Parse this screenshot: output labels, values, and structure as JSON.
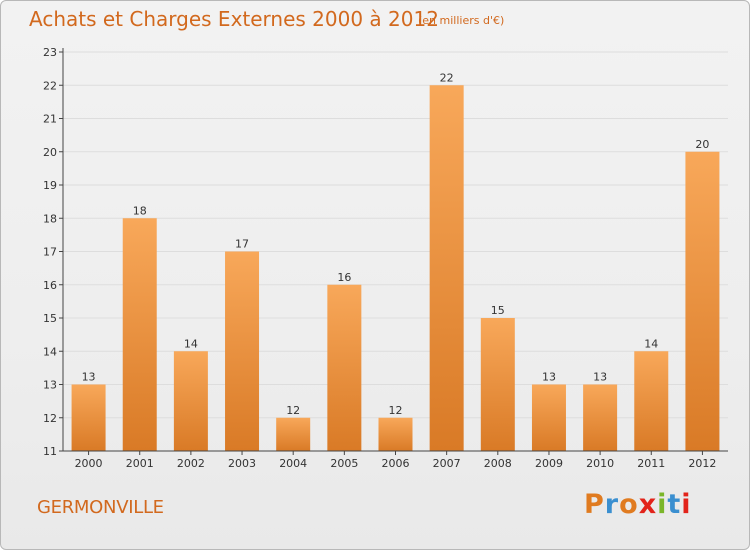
{
  "header": {
    "title": "Achats et Charges Externes 2000 à 2012",
    "subtitle": "(en milliers d'€)"
  },
  "footer": {
    "commune": "GERMONVILLE",
    "logo_text": "Proxiti"
  },
  "colors": {
    "title": "#d2691e",
    "bar_light": "#f8a85a",
    "bar_dark": "#d97a26",
    "axis": "#444444",
    "grid": "#dddddd",
    "logo_letters": [
      "#e07b20",
      "#3a8fd0",
      "#e07b20",
      "#e2231a",
      "#7bb62a",
      "#3a8fd0",
      "#e2231a"
    ]
  },
  "chart_data": {
    "type": "bar",
    "title": "Achats et Charges Externes 2000 à 2012",
    "subtitle": "(en milliers d'€)",
    "categories": [
      "2000",
      "2001",
      "2002",
      "2003",
      "2004",
      "2005",
      "2006",
      "2007",
      "2008",
      "2009",
      "2010",
      "2011",
      "2012"
    ],
    "values": [
      13,
      18,
      14,
      17,
      12,
      16,
      12,
      22,
      15,
      13,
      13,
      14,
      20
    ],
    "ylim": [
      11,
      23
    ],
    "yticks": [
      11,
      12,
      13,
      14,
      15,
      16,
      17,
      18,
      19,
      20,
      21,
      22,
      23
    ],
    "grid": true,
    "legend": "none"
  }
}
